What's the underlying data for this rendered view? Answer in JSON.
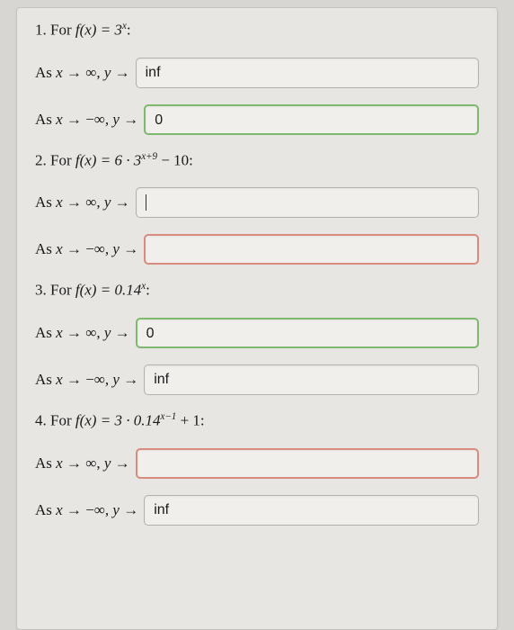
{
  "questions": [
    {
      "number": "1.",
      "func_prefix": "For ",
      "func_html": "f(x) = 3",
      "func_sup": "x",
      "func_suffix": ":",
      "parts": [
        {
          "limit_label": "As x → ∞, y →",
          "value": "inf",
          "status": "neutral"
        },
        {
          "limit_label": "As x → −∞, y →",
          "value": "0",
          "status": "green"
        }
      ]
    },
    {
      "number": "2.",
      "func_prefix": "For ",
      "func_html": "f(x) = 6 · 3",
      "func_sup": "x+9",
      "func_suffix": " − 10:",
      "parts": [
        {
          "limit_label": "As x → ∞, y →",
          "value": "",
          "status": "neutral",
          "show_caret": true
        },
        {
          "limit_label": "As x → −∞, y →",
          "value": "",
          "status": "red"
        }
      ]
    },
    {
      "number": "3.",
      "func_prefix": "For ",
      "func_html": "f(x) = 0.14",
      "func_sup": "x",
      "func_suffix": ":",
      "parts": [
        {
          "limit_label": "As x → ∞, y →",
          "value": "0",
          "status": "green"
        },
        {
          "limit_label": "As x → −∞, y →",
          "value": "inf",
          "status": "neutral"
        }
      ]
    },
    {
      "number": "4.",
      "func_prefix": "For ",
      "func_html": "f(x) = 3 · 0.14",
      "func_sup": "x−1",
      "func_suffix": " + 1:",
      "parts": [
        {
          "limit_label": "As x → ∞, y →",
          "value": "",
          "status": "red"
        },
        {
          "limit_label": "As x → −∞, y →",
          "value": "inf",
          "status": "neutral"
        }
      ]
    }
  ],
  "colors": {
    "neutral_border": "#b3b1ae",
    "green_border": "#7fb96f",
    "red_border": "#d88b7f",
    "card_bg": "#e8e6e3",
    "page_bg": "#d8d6d3"
  }
}
